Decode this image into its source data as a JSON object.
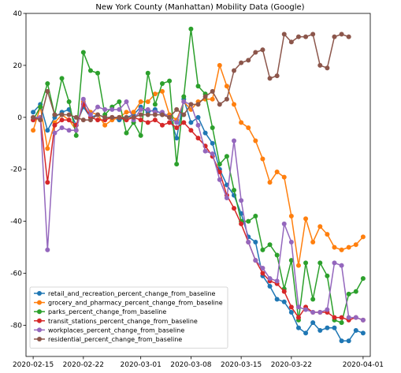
{
  "chart_data": {
    "type": "line",
    "title": "New York County (Manhattan) Mobility Data (Google)",
    "xlabel": "",
    "ylabel": "",
    "x_start": "2020-02-15",
    "x": [
      "2020-02-15",
      "2020-02-16",
      "2020-02-17",
      "2020-02-18",
      "2020-02-19",
      "2020-02-20",
      "2020-02-21",
      "2020-02-22",
      "2020-02-23",
      "2020-02-24",
      "2020-02-25",
      "2020-02-26",
      "2020-02-27",
      "2020-02-28",
      "2020-02-29",
      "2020-03-01",
      "2020-03-02",
      "2020-03-03",
      "2020-03-04",
      "2020-03-05",
      "2020-03-06",
      "2020-03-07",
      "2020-03-08",
      "2020-03-09",
      "2020-03-10",
      "2020-03-11",
      "2020-03-12",
      "2020-03-13",
      "2020-03-14",
      "2020-03-15",
      "2020-03-16",
      "2020-03-17",
      "2020-03-18",
      "2020-03-19",
      "2020-03-20",
      "2020-03-21",
      "2020-03-22",
      "2020-03-23",
      "2020-03-24",
      "2020-03-25",
      "2020-03-26",
      "2020-03-27",
      "2020-03-28",
      "2020-03-29",
      "2020-03-30",
      "2020-03-31",
      "2020-04-01"
    ],
    "xticks": [
      "2020-02-15",
      "2020-02-22",
      "2020-03-01",
      "2020-03-08",
      "2020-03-15",
      "2020-03-22",
      "2020-04-01"
    ],
    "xlim": [
      "2020-02-14",
      "2020-04-02"
    ],
    "ylim": [
      -92,
      40
    ],
    "yticks": [
      40,
      20,
      0,
      -20,
      -40,
      -60,
      -80
    ],
    "grid": false,
    "legend": "lower-left",
    "series": [
      {
        "name": "retail_and_recreation_percent_change_from_baseline",
        "color": "#1f77b4",
        "values": [
          2,
          5,
          -5,
          0,
          2,
          3,
          -3,
          4,
          0,
          1,
          0,
          0,
          -1,
          0,
          1,
          4,
          2,
          3,
          1,
          1,
          -8,
          7,
          -2,
          0,
          -6,
          -10,
          -20,
          -26,
          -30,
          -37,
          -46,
          -48,
          -61,
          -65,
          -70,
          -71,
          -75,
          -81,
          -83,
          -79,
          -82,
          -81,
          -81,
          -86,
          -86,
          -82,
          -83
        ]
      },
      {
        "name": "grocery_and_pharmacy_percent_change_from_baseline",
        "color": "#ff7f0e",
        "values": [
          -5,
          4,
          -12,
          -2,
          1,
          -1,
          -5,
          6,
          2,
          1,
          -3,
          -1,
          0,
          2,
          2,
          6,
          6,
          9,
          10,
          1,
          -1,
          6,
          3,
          6,
          7,
          7,
          20,
          12,
          5,
          -2,
          -4,
          -9,
          -16,
          -25,
          -21,
          -23,
          -38,
          -57,
          -39,
          -48,
          -42,
          -45,
          -50,
          -51,
          -50,
          -49,
          -46
        ]
      },
      {
        "name": "parks_percent_change_from_baseline",
        "color": "#2ca02c",
        "values": [
          -1,
          4,
          13,
          1,
          15,
          6,
          -7,
          25,
          18,
          17,
          1,
          4,
          6,
          -6,
          -2,
          -7,
          17,
          5,
          13,
          14,
          -18,
          8,
          34,
          12,
          9,
          -4,
          -18,
          -15,
          -28,
          -40,
          -40,
          -38,
          -51,
          -49,
          -53,
          -66,
          -55,
          -78,
          -56,
          -70,
          -56,
          -61,
          -78,
          -79,
          -68,
          -67,
          -62
        ]
      },
      {
        "name": "transit_stations_percent_change_from_baseline",
        "color": "#d62728",
        "values": [
          -1,
          0,
          -25,
          -3,
          -1,
          -1,
          -3,
          5,
          0,
          -1,
          -1,
          0,
          0,
          -1,
          0,
          -1,
          -2,
          -1,
          -3,
          -2,
          -4,
          -2,
          -5,
          -8,
          -11,
          -15,
          -21,
          -30,
          -35,
          -41,
          -48,
          -55,
          -60,
          -63,
          -64,
          -67,
          -73,
          -77,
          -73,
          -75,
          -75,
          -75,
          -77,
          -77,
          -78,
          -77,
          -78
        ]
      },
      {
        "name": "workplaces_percent_change_from_baseline",
        "color": "#9467bd",
        "values": [
          0,
          0,
          -51,
          -6,
          -4,
          -5,
          -5,
          7,
          1,
          4,
          3,
          3,
          3,
          6,
          -1,
          3,
          3,
          2,
          2,
          0,
          -2,
          6,
          5,
          -3,
          -13,
          -14,
          -24,
          -31,
          -9,
          -32,
          -48,
          -55,
          -58,
          -62,
          -63,
          -41,
          -48,
          -73,
          -74,
          -75,
          -75,
          -74,
          -56,
          -57,
          -77,
          -77,
          -78
        ]
      },
      {
        "name": "residential_percent_change_from_baseline",
        "color": "#8c564b",
        "values": [
          0,
          -1,
          10,
          1,
          1,
          1,
          0,
          -1,
          -1,
          1,
          0,
          0,
          0,
          0,
          0,
          1,
          1,
          1,
          1,
          0,
          3,
          1,
          5,
          5,
          8,
          10,
          5,
          7,
          18,
          21,
          22,
          25,
          26,
          15,
          16,
          32,
          29,
          31,
          31,
          32,
          20,
          19,
          31,
          32,
          31,
          null,
          null
        ]
      }
    ]
  }
}
